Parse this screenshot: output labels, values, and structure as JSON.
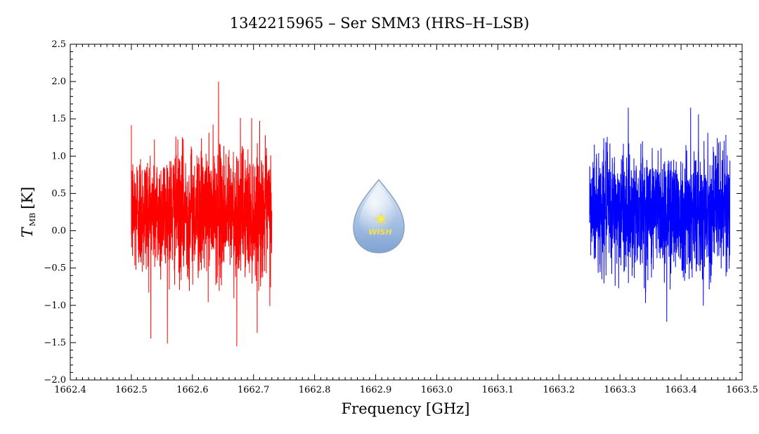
{
  "chart_data": {
    "type": "line",
    "title": "1342215965 – Ser SMM3 (HRS–H–LSB)",
    "xlabel": "Frequency [GHz]",
    "ylabel_main": "T",
    "ylabel_sub": "MB",
    "ylabel_unit": "[K]",
    "xlim": [
      1662.4,
      1663.5
    ],
    "ylim": [
      -2.0,
      2.5
    ],
    "x_ticks": [
      "1662.4",
      "1662.5",
      "1662.6",
      "1662.7",
      "1662.8",
      "1662.9",
      "1663.0",
      "1663.1",
      "1663.2",
      "1663.3",
      "1663.4",
      "1663.5"
    ],
    "y_ticks": [
      "-2.0",
      "-1.5",
      "-1.0",
      "-0.5",
      "0.0",
      "0.5",
      "1.0",
      "1.5",
      "2.0",
      "2.5"
    ],
    "grid": false,
    "series": [
      {
        "color": "#ff0000",
        "x_range": [
          1662.5,
          1662.73
        ],
        "mean": 0.25,
        "noise_sigma": 0.42,
        "max": 2.0,
        "min": -1.55
      },
      {
        "color": "#0000ff",
        "x_range": [
          1663.25,
          1663.48
        ],
        "mean": 0.28,
        "noise_sigma": 0.4,
        "max": 1.65,
        "min": -1.22
      }
    ]
  },
  "logo": {
    "text": "WISH",
    "icon": "water-drop-star-icon"
  }
}
